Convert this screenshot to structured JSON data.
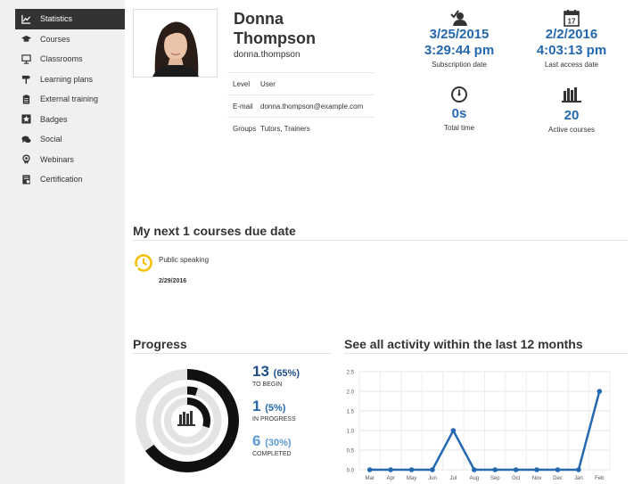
{
  "sidebar": {
    "items": [
      {
        "label": "Statistics",
        "icon": "chart-line-icon",
        "active": true
      },
      {
        "label": "Courses",
        "icon": "graduation-cap-icon",
        "active": false
      },
      {
        "label": "Classrooms",
        "icon": "presentation-board-icon",
        "active": false
      },
      {
        "label": "Learning plans",
        "icon": "signpost-icon",
        "active": false
      },
      {
        "label": "External training",
        "icon": "clipboard-icon",
        "active": false
      },
      {
        "label": "Badges",
        "icon": "star-badge-icon",
        "active": false
      },
      {
        "label": "Social",
        "icon": "chat-bubbles-icon",
        "active": false
      },
      {
        "label": "Webinars",
        "icon": "webinar-icon",
        "active": false
      },
      {
        "label": "Certification",
        "icon": "certificate-icon",
        "active": false
      }
    ]
  },
  "profile": {
    "first_name": "Donna",
    "last_name": "Thompson",
    "username": "donna.thompson",
    "fields": [
      {
        "key": "Level",
        "value": "User"
      },
      {
        "key": "E-mail",
        "value": "donna.thompson@example.com"
      },
      {
        "key": "Groups",
        "value": "Tutors, Trainers"
      }
    ]
  },
  "stats": {
    "subscription": {
      "date": "3/25/2015",
      "time": "3:29:44 pm",
      "label": "Subscription date"
    },
    "last_access": {
      "date": "2/2/2016",
      "time": "4:03:13 pm",
      "label": "Last access date",
      "calendar_day": "17"
    },
    "total_time": {
      "value": "0s",
      "label": "Total time"
    },
    "active_courses": {
      "value": "20",
      "label": "Active courses"
    }
  },
  "due": {
    "title": "My next 1 courses due date",
    "course": "Public speaking",
    "date": "2/29/2016"
  },
  "progress": {
    "title": "Progress",
    "to_begin": {
      "count": "13",
      "pct": "(65%)",
      "label": "TO BEGIN",
      "fraction": 0.65
    },
    "in_progress": {
      "count": "1",
      "pct": "(5%)",
      "label": "IN PROGRESS",
      "fraction": 0.05
    },
    "completed": {
      "count": "6",
      "pct": "(30%)",
      "label": "COMPLETED",
      "fraction": 0.3
    }
  },
  "activity": {
    "title": "See all activity within the last 12 months"
  },
  "colors": {
    "accent": "#2368b0",
    "completed": "#5b9bd5",
    "due_icon": "#f5c000",
    "sidebar_active": "#333333"
  },
  "chart_data": {
    "type": "line",
    "categories": [
      "Mar",
      "Apr",
      "May",
      "Jun",
      "Jul",
      "Aug",
      "Sep",
      "Oct",
      "Nov",
      "Dec",
      "Jan",
      "Feb"
    ],
    "values": [
      0,
      0,
      0,
      0,
      1,
      0,
      0,
      0,
      0,
      0,
      0,
      2
    ],
    "ylim": [
      0,
      2.5
    ],
    "yticks": [
      "0.0",
      "0.5",
      "1.0",
      "1.5",
      "2.0",
      "2.5"
    ],
    "grid": true,
    "color": "#2368b0"
  }
}
